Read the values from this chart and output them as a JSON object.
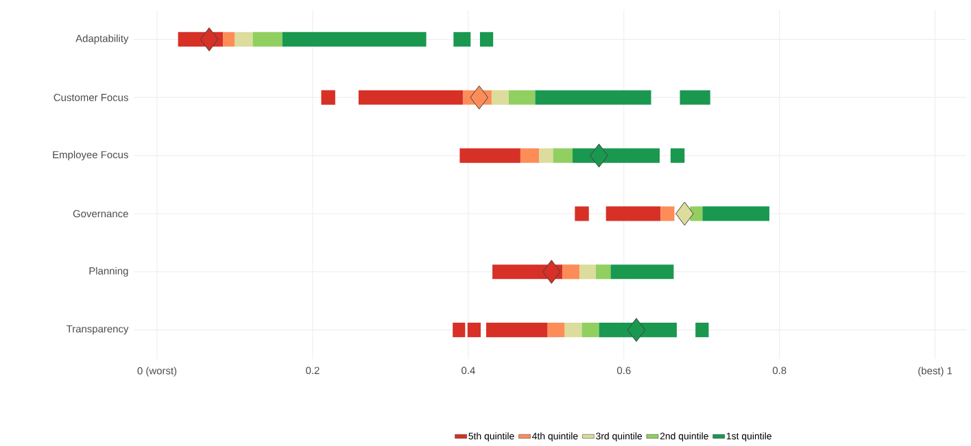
{
  "chart_data": {
    "type": "bar",
    "orientation": "horizontal",
    "categories": [
      "Adaptability",
      "Customer Focus",
      "Employee Focus",
      "Governance",
      "Planning",
      "Transparency"
    ],
    "series": [
      {
        "name": "5th quintile",
        "color": "#d73027",
        "base": [
          0.027,
          0.259,
          0.389,
          0.577,
          0.431,
          0.423
        ],
        "values": [
          0.058,
          0.134,
          0.078,
          0.07,
          0.09,
          0.079
        ]
      },
      {
        "name": "4th quintile",
        "color": "#fc8d59",
        "base": [
          0.085,
          0.393,
          0.467,
          0.647,
          0.521,
          0.502
        ],
        "values": [
          0.015,
          0.037,
          0.024,
          0.018,
          0.022,
          0.022
        ]
      },
      {
        "name": "3rd quintile",
        "color": "#dcdc9c",
        "base": [
          0.1,
          0.43,
          0.491,
          null,
          0.543,
          0.524
        ],
        "values": [
          0.023,
          0.022,
          0.018,
          null,
          0.021,
          0.022
        ]
      },
      {
        "name": "2nd quintile",
        "color": "#91cf60",
        "base": [
          0.123,
          0.452,
          0.509,
          0.685,
          0.564,
          0.546
        ],
        "values": [
          0.038,
          0.034,
          0.025,
          0.016,
          0.019,
          0.022
        ]
      },
      {
        "name": "1st quintile",
        "color": "#1a9850",
        "base": [
          0.161,
          0.486,
          0.534,
          0.701,
          0.583,
          0.568
        ],
        "values": [
          0.185,
          0.149,
          0.112,
          0.086,
          0.081,
          0.1
        ]
      },
      {
        "color": "#d73027",
        "base": [
          null,
          0.211,
          null,
          0.537,
          null,
          0.38
        ],
        "values": [
          null,
          0.018,
          null,
          0.018,
          null,
          0.016
        ]
      },
      {
        "color": "#d73027",
        "base": [
          null,
          null,
          null,
          null,
          null,
          0.399
        ],
        "values": [
          null,
          null,
          null,
          null,
          null,
          0.017
        ]
      },
      {
        "color": "#1a9850",
        "base": [
          0.381,
          0.672,
          0.66,
          null,
          null,
          0.692
        ],
        "values": [
          0.022,
          0.039,
          0.018,
          null,
          null,
          0.017
        ]
      },
      {
        "color": "#1a9850",
        "base": [
          0.415,
          null,
          null,
          null,
          null,
          null
        ],
        "values": [
          0.017,
          null,
          null,
          null,
          null,
          null
        ]
      },
      {
        "type": "scatter",
        "marker": "diamond",
        "values": [
          0.067,
          0.414,
          0.568,
          0.678,
          0.507,
          0.616
        ],
        "colors": [
          "#d73027",
          "#fc8d59",
          "#1a9850",
          "#dcdc9c",
          "#d73027",
          "#1a9850"
        ]
      }
    ],
    "xlim": [
      -0.03,
      1.04
    ],
    "xticks": [
      {
        "value": 0,
        "label": "0 (worst)"
      },
      0.2,
      0.4,
      0.6,
      0.8,
      {
        "value": 1,
        "label": "(best) 1"
      }
    ],
    "grid": true,
    "legend": "bottom"
  }
}
